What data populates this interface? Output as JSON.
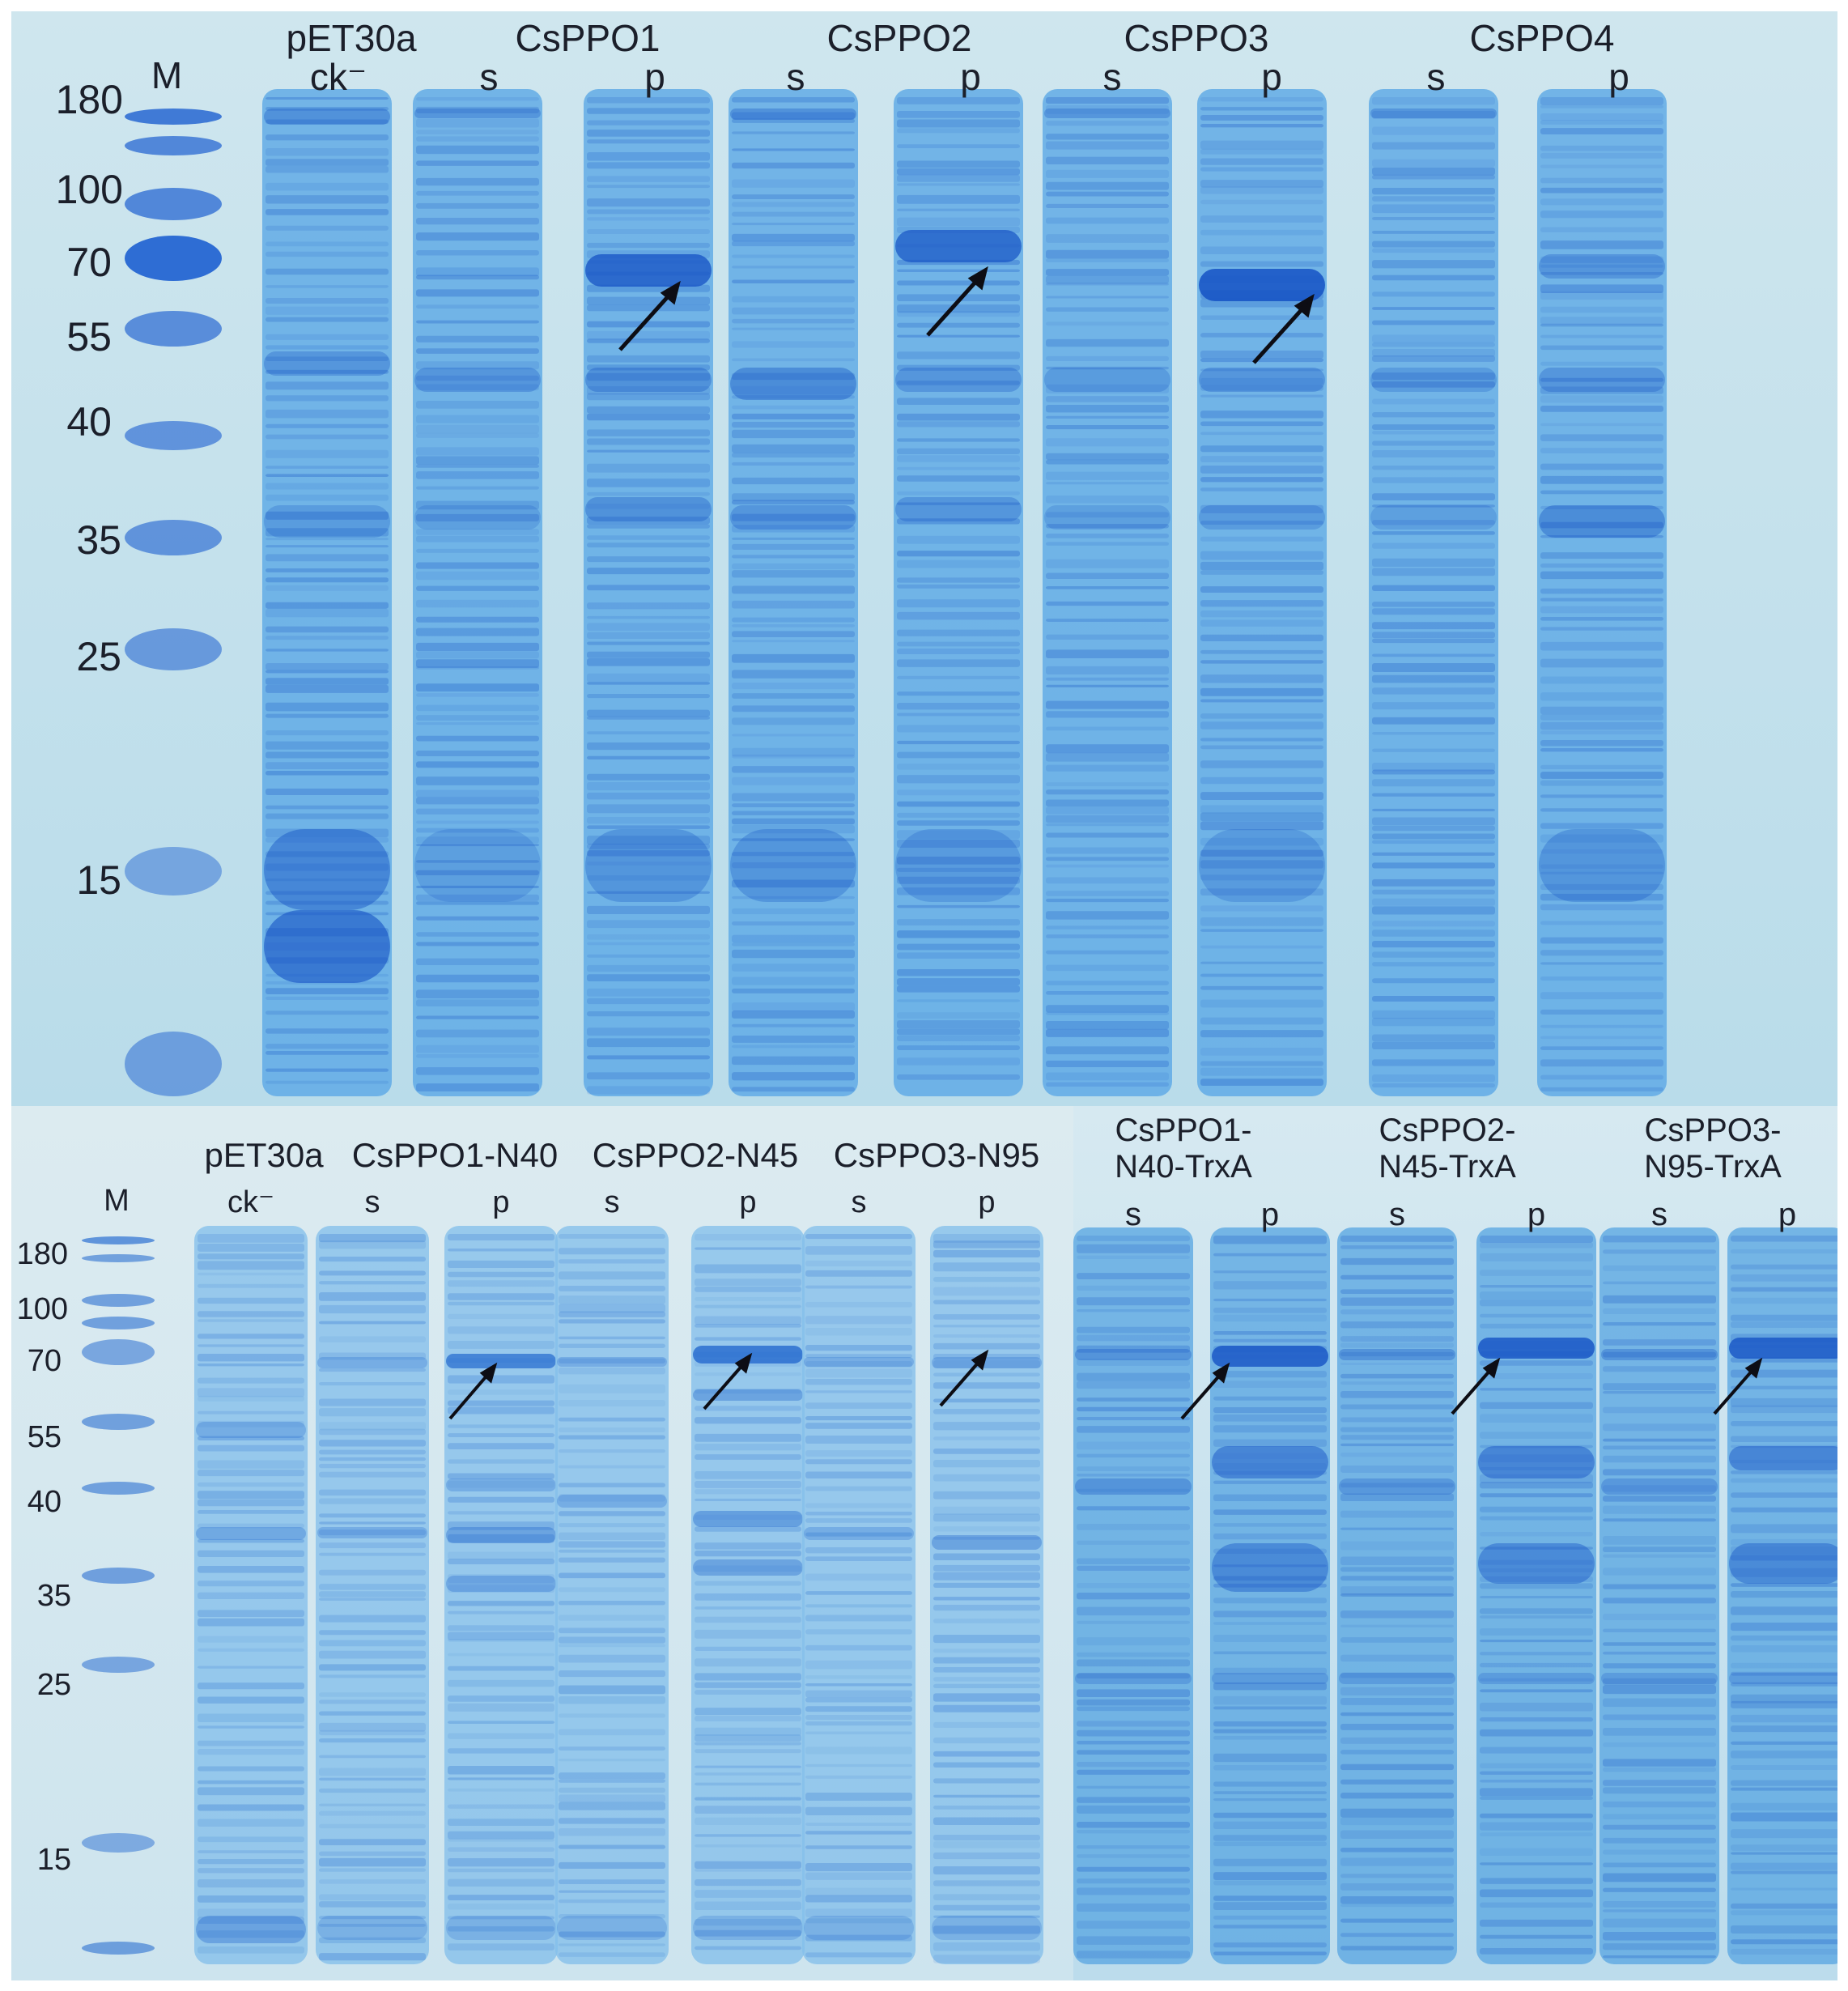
{
  "colors": {
    "gel_bg": "#bfe0ec",
    "lane": "#4aa2e2",
    "band": "#1f6fd4",
    "arrow": "#0d0d14",
    "text": "#1b1f2a"
  },
  "top_gel": {
    "marker_header": "M",
    "marker_sizes": [
      "180",
      "100",
      "70",
      "55",
      "40",
      "35",
      "25",
      "15"
    ],
    "groups": [
      "pET30a",
      "CsPPO1",
      "CsPPO2",
      "CsPPO3",
      "CsPPO4"
    ],
    "lane_labels": [
      "ck⁻",
      "s",
      "p",
      "s",
      "p",
      "s",
      "p",
      "s",
      "p"
    ]
  },
  "bottom_left_gel": {
    "marker_header": "M",
    "marker_sizes": [
      "180",
      "100",
      "70",
      "55",
      "40",
      "35",
      "25",
      "15"
    ],
    "groups": [
      "pET30a",
      "CsPPO1-N40",
      "CsPPO2-N45",
      "CsPPO3-N95"
    ],
    "lane_labels": [
      "ck⁻",
      "s",
      "p",
      "s",
      "p",
      "s",
      "p"
    ]
  },
  "bottom_right_gel": {
    "groups": [
      {
        "line1": "CsPPO1-",
        "line2": "N40-TrxA"
      },
      {
        "line1": "CsPPO2-",
        "line2": "N45-TrxA"
      },
      {
        "line1": "CsPPO3-",
        "line2": "N95-TrxA"
      }
    ],
    "lane_labels": [
      "s",
      "p",
      "s",
      "p",
      "s",
      "p"
    ]
  }
}
